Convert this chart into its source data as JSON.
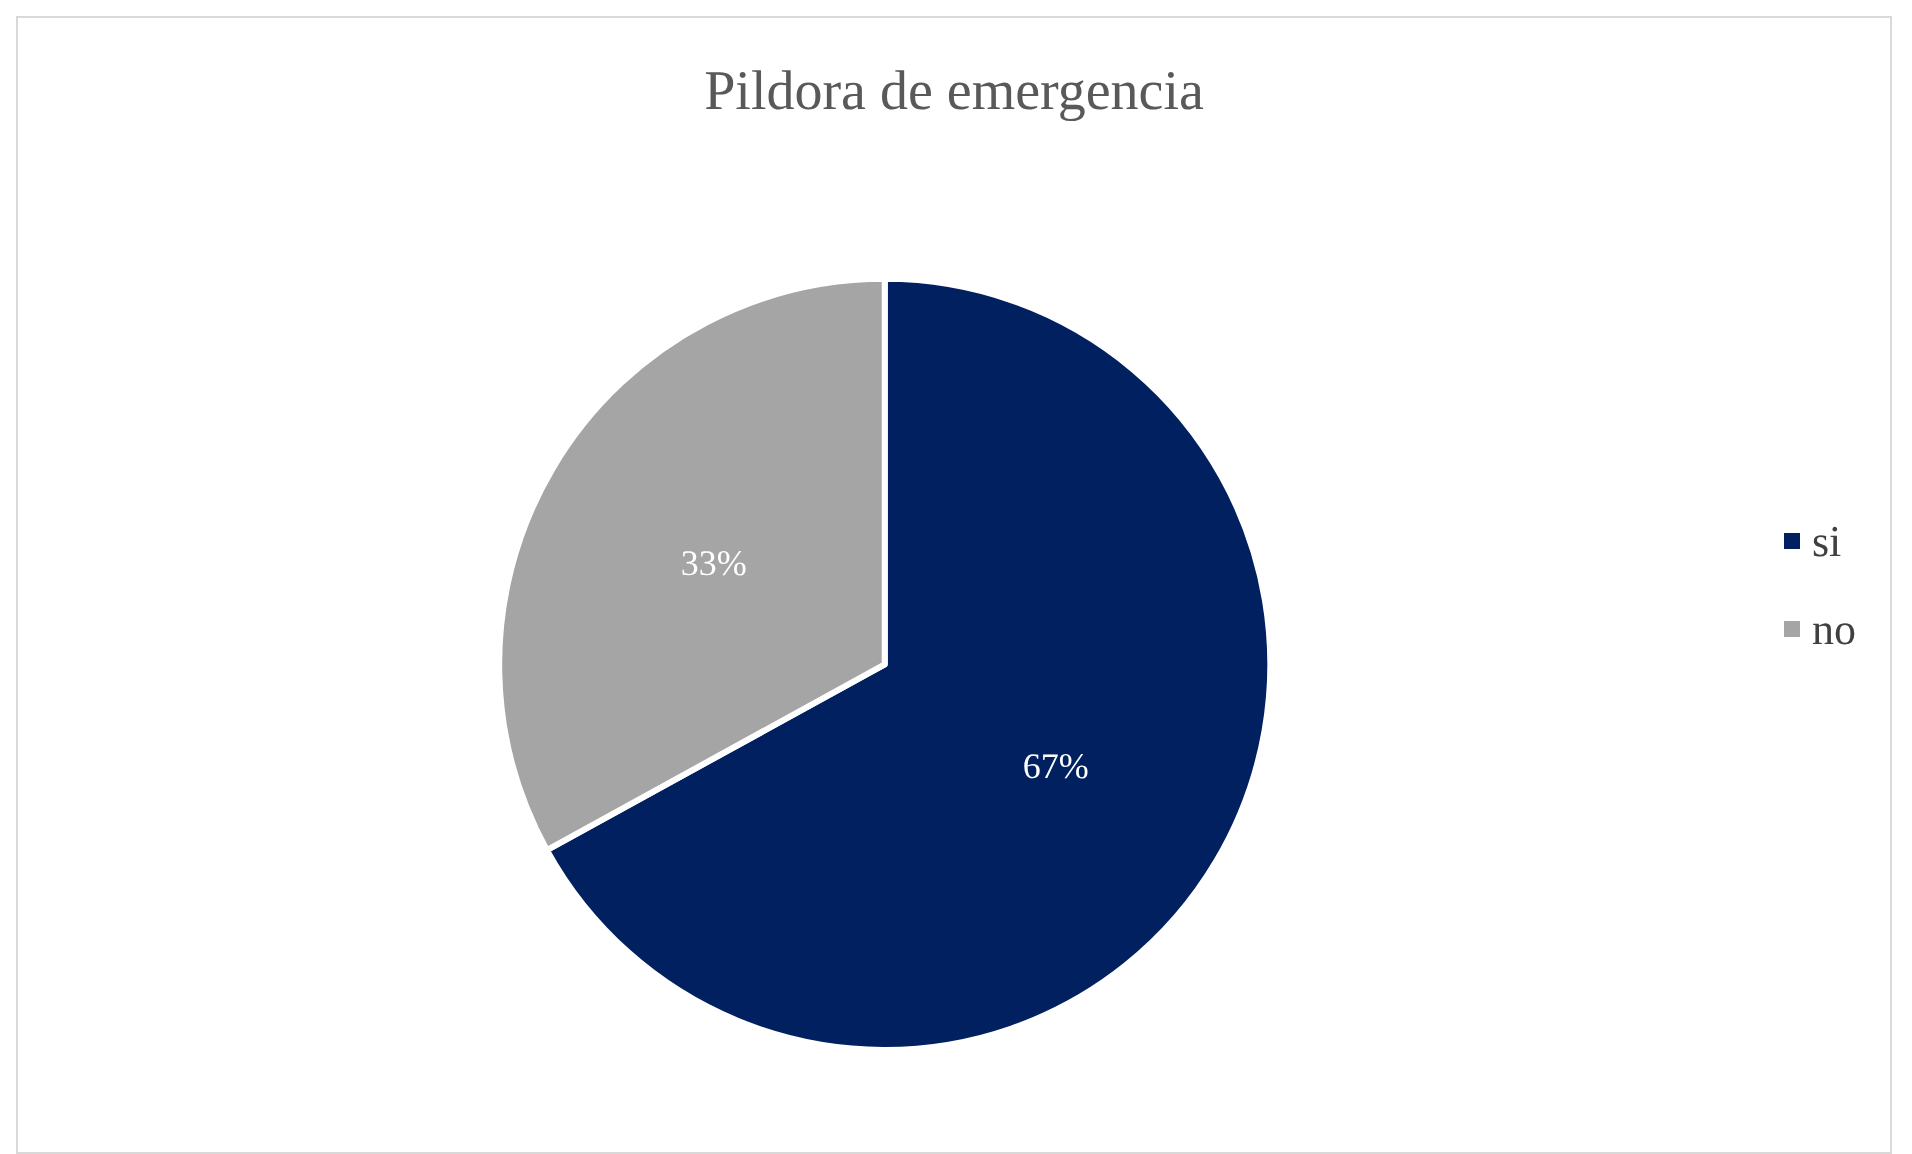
{
  "chart_data": {
    "type": "pie",
    "title": "Pildora de emergencia",
    "categories": [
      "si",
      "no"
    ],
    "values": [
      67,
      33
    ],
    "colors": [
      "#002060",
      "#a5a5a5"
    ],
    "value_labels": [
      "67%",
      "33%"
    ],
    "legend": "right"
  }
}
